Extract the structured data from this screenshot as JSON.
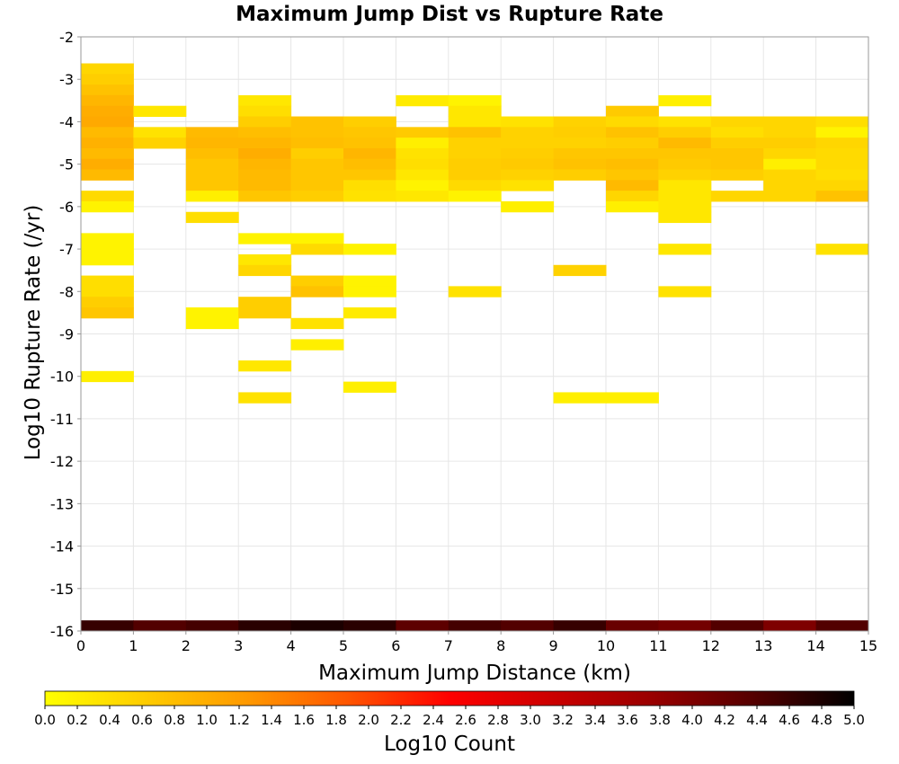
{
  "chart_data": {
    "type": "heatmap",
    "title": "Maximum Jump Dist vs Rupture Rate",
    "xlabel": "Maximum Jump Distance (km)",
    "ylabel": "Log10 Rupture Rate (/yr)",
    "xlim": [
      0,
      15
    ],
    "ylim": [
      -16,
      -2
    ],
    "x_ticks": [
      "0",
      "1",
      "2",
      "3",
      "4",
      "5",
      "6",
      "7",
      "8",
      "9",
      "10",
      "11",
      "12",
      "13",
      "14",
      "15"
    ],
    "y_ticks": [
      "-2",
      "-3",
      "-4",
      "-5",
      "-6",
      "-7",
      "-8",
      "-9",
      "-10",
      "-11",
      "-12",
      "-13",
      "-14",
      "-15",
      "-16"
    ],
    "x_bin_width": 1,
    "y_bin_height": 0.25,
    "grid": true,
    "colorbar": {
      "label": "Log10 Count",
      "min": 0.0,
      "max": 5.0,
      "colors": [
        "#ffff00",
        "#ffcc00",
        "#ff9900",
        "#ff5500",
        "#ff0000",
        "#cc0000",
        "#990000",
        "#550000",
        "#000000"
      ],
      "ticks": [
        "0.0",
        "0.2",
        "0.4",
        "0.6",
        "0.8",
        "1.0",
        "1.2",
        "1.4",
        "1.6",
        "1.8",
        "2.0",
        "2.2",
        "2.4",
        "2.6",
        "2.8",
        "3.0",
        "3.2",
        "3.4",
        "3.6",
        "3.8",
        "4.0",
        "4.2",
        "4.4",
        "4.6",
        "4.8",
        "5.0"
      ]
    },
    "cells": [
      [
        0.5,
        -2.75,
        0.5
      ],
      [
        0.5,
        -3.0,
        0.6
      ],
      [
        0.5,
        -3.25,
        0.75
      ],
      [
        0.5,
        -3.5,
        0.9
      ],
      [
        0.5,
        -3.75,
        1.0
      ],
      [
        0.5,
        -4.0,
        1.05
      ],
      [
        0.5,
        -4.25,
        0.85
      ],
      [
        0.5,
        -4.5,
        0.95
      ],
      [
        0.5,
        -4.75,
        0.85
      ],
      [
        0.5,
        -5.0,
        1.0
      ],
      [
        0.5,
        -5.25,
        0.85
      ],
      [
        0.5,
        -5.75,
        0.45
      ],
      [
        0.5,
        -6.0,
        0.15
      ],
      [
        0.5,
        -6.75,
        0.15
      ],
      [
        0.5,
        -7.0,
        0.15
      ],
      [
        0.5,
        -7.25,
        0.15
      ],
      [
        0.5,
        -7.75,
        0.4
      ],
      [
        0.5,
        -8.0,
        0.4
      ],
      [
        0.5,
        -8.25,
        0.6
      ],
      [
        0.5,
        -8.5,
        0.7
      ],
      [
        0.5,
        -10.0,
        0.2
      ],
      [
        0.5,
        -15.875,
        4.6
      ],
      [
        1.5,
        -3.75,
        0.3
      ],
      [
        1.5,
        -4.25,
        0.35
      ],
      [
        1.5,
        -4.5,
        0.55
      ],
      [
        1.5,
        -15.875,
        4.4
      ],
      [
        2.5,
        -4.25,
        0.85
      ],
      [
        2.5,
        -4.5,
        0.9
      ],
      [
        2.5,
        -4.75,
        0.8
      ],
      [
        2.5,
        -5.0,
        0.7
      ],
      [
        2.5,
        -5.25,
        0.7
      ],
      [
        2.5,
        -5.5,
        0.7
      ],
      [
        2.5,
        -5.75,
        0.2
      ],
      [
        2.5,
        -6.25,
        0.4
      ],
      [
        2.5,
        -8.5,
        0.15
      ],
      [
        2.5,
        -8.75,
        0.15
      ],
      [
        2.5,
        -15.875,
        4.5
      ],
      [
        3.5,
        -3.5,
        0.3
      ],
      [
        3.5,
        -3.75,
        0.4
      ],
      [
        3.5,
        -4.0,
        0.6
      ],
      [
        3.5,
        -4.25,
        0.8
      ],
      [
        3.5,
        -4.5,
        0.9
      ],
      [
        3.5,
        -4.75,
        1.0
      ],
      [
        3.5,
        -5.0,
        0.9
      ],
      [
        3.5,
        -5.25,
        0.85
      ],
      [
        3.5,
        -5.5,
        0.85
      ],
      [
        3.5,
        -5.75,
        0.7
      ],
      [
        3.5,
        -6.75,
        0.15
      ],
      [
        3.5,
        -7.25,
        0.3
      ],
      [
        3.5,
        -7.5,
        0.5
      ],
      [
        3.5,
        -8.25,
        0.6
      ],
      [
        3.5,
        -8.5,
        0.6
      ],
      [
        3.5,
        -9.75,
        0.3
      ],
      [
        3.5,
        -10.5,
        0.35
      ],
      [
        3.5,
        -15.875,
        4.7
      ],
      [
        4.5,
        -4.0,
        0.75
      ],
      [
        4.5,
        -4.25,
        0.75
      ],
      [
        4.5,
        -4.5,
        0.8
      ],
      [
        4.5,
        -4.75,
        0.6
      ],
      [
        4.5,
        -5.0,
        0.7
      ],
      [
        4.5,
        -5.25,
        0.7
      ],
      [
        4.5,
        -5.5,
        0.7
      ],
      [
        4.5,
        -5.75,
        0.6
      ],
      [
        4.5,
        -6.75,
        0.15
      ],
      [
        4.5,
        -7.0,
        0.45
      ],
      [
        4.5,
        -7.75,
        0.6
      ],
      [
        4.5,
        -8.0,
        0.75
      ],
      [
        4.5,
        -8.75,
        0.35
      ],
      [
        4.5,
        -9.25,
        0.2
      ],
      [
        4.5,
        -15.875,
        4.8
      ],
      [
        5.5,
        -4.0,
        0.6
      ],
      [
        5.5,
        -4.25,
        0.7
      ],
      [
        5.5,
        -4.5,
        0.75
      ],
      [
        5.5,
        -4.75,
        0.9
      ],
      [
        5.5,
        -5.0,
        0.8
      ],
      [
        5.5,
        -5.25,
        0.7
      ],
      [
        5.5,
        -5.5,
        0.4
      ],
      [
        5.5,
        -5.75,
        0.35
      ],
      [
        5.5,
        -7.0,
        0.15
      ],
      [
        5.5,
        -7.75,
        0.15
      ],
      [
        5.5,
        -8.0,
        0.15
      ],
      [
        5.5,
        -8.5,
        0.25
      ],
      [
        5.5,
        -10.25,
        0.2
      ],
      [
        5.5,
        -15.875,
        4.7
      ],
      [
        6.5,
        -3.5,
        0.25
      ],
      [
        6.5,
        -4.25,
        0.65
      ],
      [
        6.5,
        -4.5,
        0.2
      ],
      [
        6.5,
        -4.75,
        0.35
      ],
      [
        6.5,
        -5.0,
        0.4
      ],
      [
        6.5,
        -5.25,
        0.3
      ],
      [
        6.5,
        -5.5,
        0.15
      ],
      [
        6.5,
        -5.75,
        0.3
      ],
      [
        6.5,
        -15.875,
        4.3
      ],
      [
        7.5,
        -3.5,
        0.15
      ],
      [
        7.5,
        -3.75,
        0.3
      ],
      [
        7.5,
        -4.0,
        0.3
      ],
      [
        7.5,
        -4.25,
        0.75
      ],
      [
        7.5,
        -4.5,
        0.55
      ],
      [
        7.5,
        -4.75,
        0.55
      ],
      [
        7.5,
        -5.0,
        0.6
      ],
      [
        7.5,
        -5.25,
        0.6
      ],
      [
        7.5,
        -5.5,
        0.45
      ],
      [
        7.5,
        -5.75,
        0.15
      ],
      [
        7.5,
        -8.0,
        0.35
      ],
      [
        7.5,
        -15.875,
        4.5
      ],
      [
        8.5,
        -4.0,
        0.35
      ],
      [
        8.5,
        -4.25,
        0.55
      ],
      [
        8.5,
        -4.5,
        0.55
      ],
      [
        8.5,
        -4.75,
        0.6
      ],
      [
        8.5,
        -5.0,
        0.65
      ],
      [
        8.5,
        -5.25,
        0.55
      ],
      [
        8.5,
        -5.5,
        0.35
      ],
      [
        8.5,
        -6.0,
        0.2
      ],
      [
        8.5,
        -15.875,
        4.4
      ],
      [
        9.5,
        -4.0,
        0.55
      ],
      [
        9.5,
        -4.25,
        0.6
      ],
      [
        9.5,
        -4.5,
        0.55
      ],
      [
        9.5,
        -4.75,
        0.7
      ],
      [
        9.5,
        -5.0,
        0.75
      ],
      [
        9.5,
        -5.25,
        0.6
      ],
      [
        9.5,
        -7.5,
        0.55
      ],
      [
        9.5,
        -10.5,
        0.2
      ],
      [
        9.5,
        -15.875,
        4.6
      ],
      [
        10.5,
        -3.75,
        0.65
      ],
      [
        10.5,
        -4.0,
        0.45
      ],
      [
        10.5,
        -4.25,
        0.75
      ],
      [
        10.5,
        -4.5,
        0.6
      ],
      [
        10.5,
        -4.75,
        0.7
      ],
      [
        10.5,
        -5.0,
        0.8
      ],
      [
        10.5,
        -5.25,
        0.7
      ],
      [
        10.5,
        -5.5,
        0.85
      ],
      [
        10.5,
        -5.75,
        0.5
      ],
      [
        10.5,
        -6.0,
        0.2
      ],
      [
        10.5,
        -10.5,
        0.2
      ],
      [
        10.5,
        -15.875,
        4.2
      ],
      [
        11.5,
        -3.5,
        0.2
      ],
      [
        11.5,
        -4.0,
        0.35
      ],
      [
        11.5,
        -4.25,
        0.6
      ],
      [
        11.5,
        -4.5,
        0.85
      ],
      [
        11.5,
        -4.75,
        0.7
      ],
      [
        11.5,
        -5.0,
        0.65
      ],
      [
        11.5,
        -5.25,
        0.55
      ],
      [
        11.5,
        -5.5,
        0.3
      ],
      [
        11.5,
        -5.75,
        0.3
      ],
      [
        11.5,
        -6.0,
        0.3
      ],
      [
        11.5,
        -6.25,
        0.3
      ],
      [
        11.5,
        -7.0,
        0.3
      ],
      [
        11.5,
        -8.0,
        0.35
      ],
      [
        11.5,
        -15.875,
        4.1
      ],
      [
        12.5,
        -4.0,
        0.5
      ],
      [
        12.5,
        -4.25,
        0.4
      ],
      [
        12.5,
        -4.5,
        0.6
      ],
      [
        12.5,
        -4.75,
        0.7
      ],
      [
        12.5,
        -5.0,
        0.7
      ],
      [
        12.5,
        -5.25,
        0.6
      ],
      [
        12.5,
        -5.75,
        0.5
      ],
      [
        12.5,
        -15.875,
        4.4
      ],
      [
        13.5,
        -4.0,
        0.5
      ],
      [
        13.5,
        -4.25,
        0.5
      ],
      [
        13.5,
        -4.5,
        0.6
      ],
      [
        13.5,
        -4.75,
        0.5
      ],
      [
        13.5,
        -5.0,
        0.2
      ],
      [
        13.5,
        -5.25,
        0.5
      ],
      [
        13.5,
        -5.5,
        0.5
      ],
      [
        13.5,
        -5.75,
        0.5
      ],
      [
        13.5,
        -15.875,
        4.0
      ],
      [
        14.5,
        -4.0,
        0.4
      ],
      [
        14.5,
        -4.25,
        0.15
      ],
      [
        14.5,
        -4.5,
        0.5
      ],
      [
        14.5,
        -4.75,
        0.45
      ],
      [
        14.5,
        -5.0,
        0.45
      ],
      [
        14.5,
        -5.25,
        0.4
      ],
      [
        14.5,
        -5.5,
        0.5
      ],
      [
        14.5,
        -5.75,
        0.75
      ],
      [
        14.5,
        -7.0,
        0.35
      ],
      [
        14.5,
        -15.875,
        4.4
      ]
    ]
  }
}
